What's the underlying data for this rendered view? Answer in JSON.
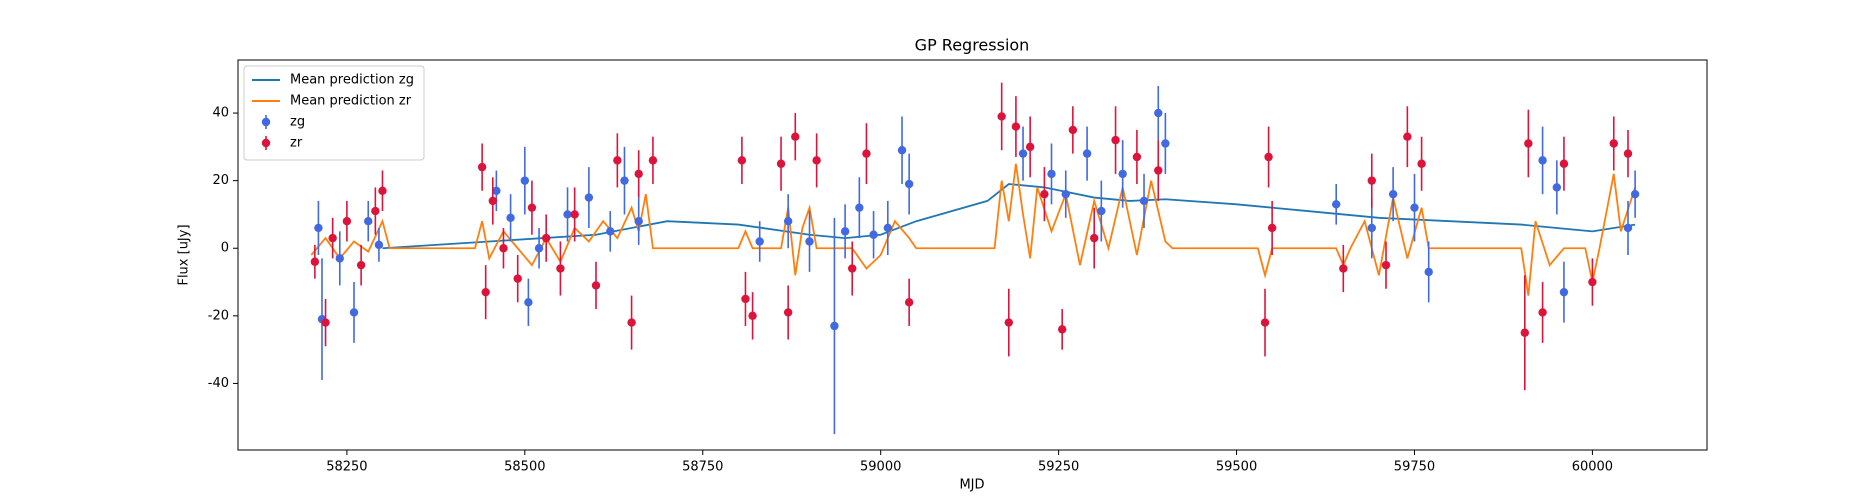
{
  "chart_data": {
    "type": "line",
    "title": "GP Regression",
    "x_label": "MJD",
    "y_label": "Flux [uJy]",
    "xlim": [
      58097,
      60161
    ],
    "ylim": [
      -59.7,
      55.7
    ],
    "xticks": [
      58250,
      58500,
      58750,
      59000,
      59250,
      59500,
      59750,
      60000
    ],
    "yticks": [
      -40,
      -20,
      0,
      20,
      40
    ],
    "legend": "upper left",
    "series": [
      {
        "name": "Mean prediction zg",
        "type": "line",
        "color": "#1f77b4",
        "x": [
          58300,
          58450,
          58600,
          58700,
          58800,
          58900,
          58950,
          59000,
          59050,
          59150,
          59180,
          59230,
          59300,
          59350,
          59400,
          59500,
          59600,
          59700,
          59800,
          59900,
          59950,
          60000,
          60060
        ],
        "values": [
          0,
          2,
          4,
          8,
          7,
          4,
          3,
          4,
          8,
          14,
          19,
          18,
          15,
          14,
          14.5,
          13,
          11,
          9,
          8,
          7,
          6,
          5,
          7
        ]
      },
      {
        "name": "Mean prediction zr",
        "type": "line",
        "color": "#ff7f0e",
        "x": [
          58200,
          58220,
          58240,
          58260,
          58280,
          58300,
          58310,
          58430,
          58440,
          58450,
          58470,
          58490,
          58510,
          58530,
          58550,
          58570,
          58590,
          58610,
          58630,
          58650,
          58660,
          58670,
          58680,
          58800,
          58810,
          58820,
          58860,
          58870,
          58880,
          58890,
          58900,
          58910,
          58960,
          58980,
          59000,
          59020,
          59040,
          59050,
          59160,
          59170,
          59180,
          59190,
          59200,
          59210,
          59220,
          59240,
          59260,
          59280,
          59300,
          59320,
          59340,
          59360,
          59380,
          59400,
          59410,
          59530,
          59540,
          59550,
          59640,
          59650,
          59660,
          59680,
          59700,
          59720,
          59740,
          59760,
          59770,
          59900,
          59910,
          59920,
          59940,
          59960,
          59990,
          60000,
          60010,
          60030,
          60040,
          60060
        ],
        "values": [
          -2,
          3,
          -3,
          2,
          -1,
          8,
          0,
          0,
          8,
          -3,
          5,
          0,
          -5,
          3,
          -4,
          6,
          2,
          8,
          3,
          12,
          5,
          16,
          0,
          0,
          5,
          0,
          0,
          12,
          -8,
          6,
          12,
          0,
          0,
          -6,
          -2,
          8,
          3,
          0,
          0,
          20,
          8,
          25,
          10,
          -3,
          18,
          5,
          16,
          -5,
          14,
          0,
          18,
          -2,
          20,
          2,
          0,
          0,
          -8,
          0,
          0,
          -5,
          0,
          8,
          -8,
          15,
          -3,
          12,
          0,
          0,
          -14,
          8,
          -5,
          0,
          0,
          -10,
          0,
          22,
          5,
          18
        ]
      },
      {
        "name": "zg",
        "type": "errorbar",
        "color": "#4169e1",
        "x": [
          58210,
          58215,
          58240,
          58260,
          58280,
          58295,
          58460,
          58480,
          58500,
          58505,
          58520,
          58560,
          58590,
          58620,
          58640,
          58660,
          58830,
          58870,
          58900,
          58935,
          58950,
          58970,
          58990,
          59010,
          59030,
          59040,
          59200,
          59240,
          59260,
          59290,
          59310,
          59340,
          59370,
          59390,
          59400,
          59640,
          59690,
          59720,
          59750,
          59770,
          59930,
          59950,
          59960,
          60050,
          60060
        ],
        "values": [
          6,
          -21,
          -3,
          -19,
          8,
          1,
          17,
          9,
          20,
          -16,
          0,
          10,
          15,
          5,
          20,
          8,
          2,
          8,
          2,
          -23,
          5,
          12,
          4,
          6,
          29,
          19,
          28,
          22,
          16,
          28,
          11,
          22,
          14,
          40,
          31,
          13,
          6,
          16,
          12,
          -7,
          26,
          18,
          -13,
          6,
          16
        ],
        "errors": [
          8,
          18,
          8,
          9,
          6,
          5,
          6,
          7,
          10,
          7,
          6,
          8,
          9,
          6,
          10,
          7,
          6,
          8,
          9,
          32,
          8,
          9,
          7,
          8,
          10,
          9,
          8,
          9,
          7,
          8,
          9,
          10,
          8,
          8,
          9,
          6,
          9,
          8,
          10,
          9,
          10,
          8,
          9,
          8,
          7
        ]
      },
      {
        "name": "zr",
        "type": "errorbar",
        "color": "#dc143c",
        "x": [
          58205,
          58220,
          58230,
          58250,
          58270,
          58290,
          58300,
          58440,
          58445,
          58455,
          58470,
          58490,
          58510,
          58530,
          58550,
          58570,
          58600,
          58630,
          58650,
          58660,
          58680,
          58805,
          58810,
          58820,
          58860,
          58870,
          58880,
          58910,
          58960,
          58980,
          59040,
          59170,
          59180,
          59190,
          59210,
          59230,
          59255,
          59270,
          59300,
          59330,
          59360,
          59390,
          59540,
          59545,
          59550,
          59650,
          59690,
          59710,
          59740,
          59760,
          59905,
          59910,
          59930,
          59960,
          60000,
          60030,
          60050
        ],
        "values": [
          -4,
          -22,
          3,
          8,
          -5,
          11,
          17,
          24,
          -13,
          14,
          0,
          -9,
          12,
          3,
          -6,
          10,
          -11,
          26,
          -22,
          22,
          26,
          26,
          -15,
          -20,
          25,
          -19,
          33,
          26,
          -6,
          28,
          -16,
          39,
          -22,
          36,
          30,
          16,
          -24,
          35,
          3,
          32,
          27,
          23,
          -22,
          27,
          6,
          -6,
          20,
          -5,
          33,
          25,
          -25,
          31,
          -19,
          25,
          -10,
          31,
          28
        ],
        "errors": [
          5,
          7,
          6,
          6,
          6,
          7,
          6,
          7,
          8,
          7,
          6,
          7,
          8,
          7,
          8,
          8,
          7,
          8,
          8,
          7,
          7,
          7,
          8,
          7,
          8,
          8,
          7,
          8,
          8,
          9,
          7,
          10,
          10,
          9,
          9,
          8,
          6,
          7,
          9,
          10,
          8,
          9,
          10,
          9,
          8,
          7,
          8,
          7,
          9,
          8,
          17,
          10,
          9,
          8,
          7,
          8,
          7
        ]
      }
    ]
  }
}
